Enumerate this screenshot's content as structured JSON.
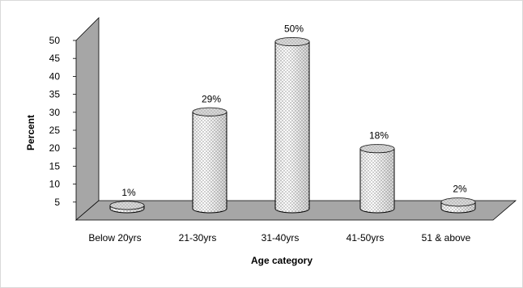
{
  "chart_data": {
    "type": "bar",
    "style": "3d-cylinder",
    "categories": [
      "Below 20yrs",
      "21-30yrs",
      "31-40yrs",
      "41-50yrs",
      "51 & above"
    ],
    "values": [
      1,
      29,
      50,
      18,
      2
    ],
    "data_labels": [
      "1%",
      "29%",
      "50%",
      "18%",
      "2%"
    ],
    "title": "",
    "xlabel": "Age category",
    "ylabel": "Percent",
    "ylim": [
      0,
      50
    ],
    "y_ticks": [
      5,
      10,
      15,
      20,
      25,
      30,
      35,
      40,
      45,
      50
    ],
    "grid": false,
    "legend": "none",
    "colors": {
      "wall": "#a6a6a6",
      "floor": "#a6a6a6",
      "bar_fill": "#ffffff",
      "bar_pattern": "#8c8c8c",
      "outline": "#000000"
    }
  }
}
